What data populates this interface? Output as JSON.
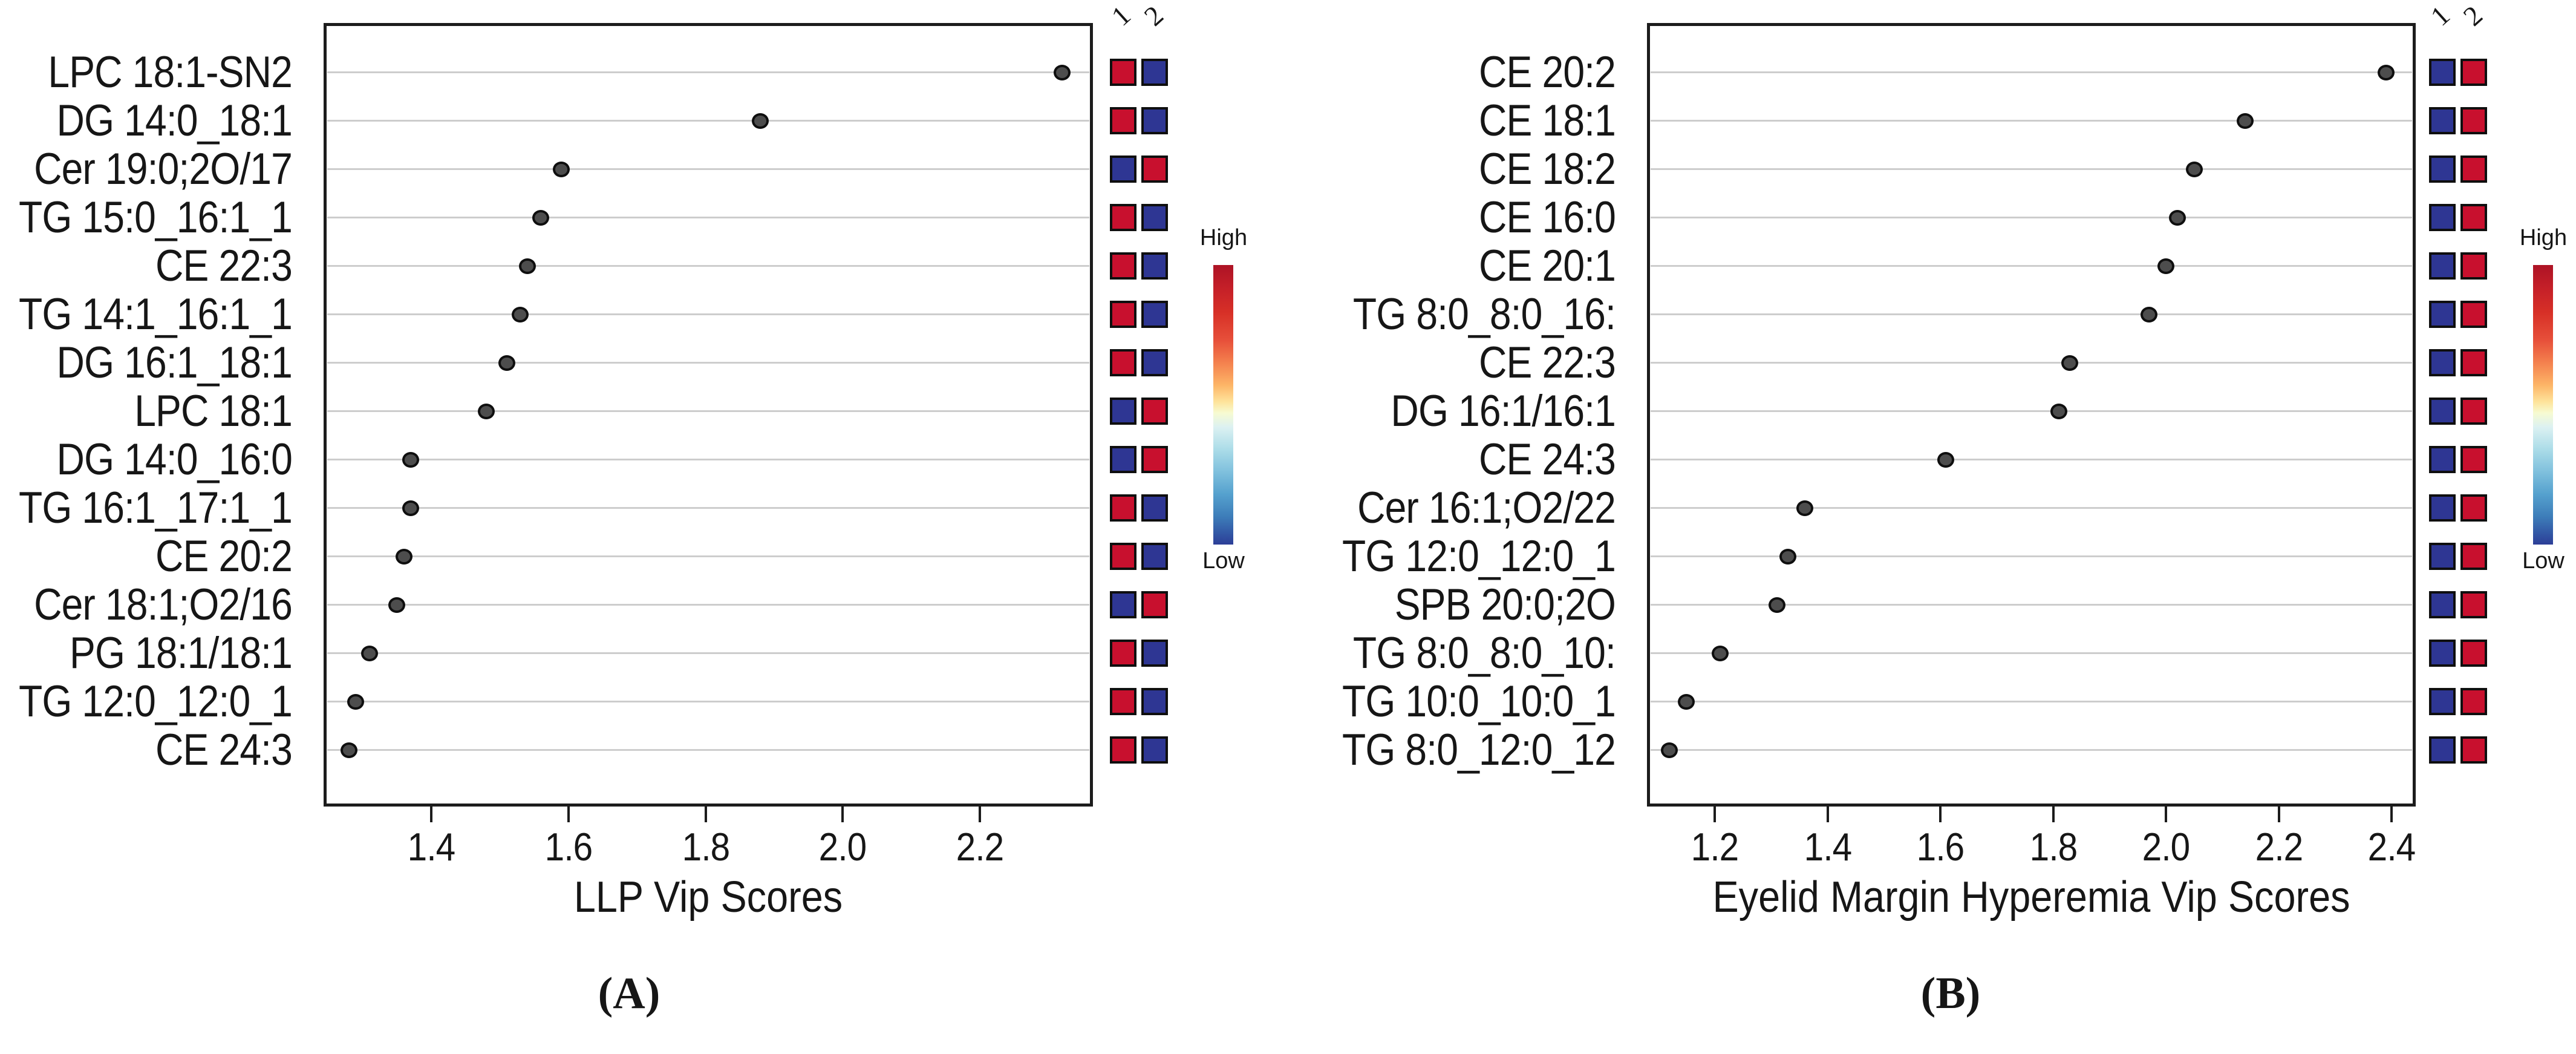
{
  "figure_colors": {
    "heat_high": "#c8102e",
    "heat_low": "#2e3693",
    "dot_fill": "#4d4d4d",
    "gridline": "#cdcdcd"
  },
  "chart_data": [
    {
      "type": "scatter",
      "panel_label": "(A)",
      "title": "",
      "xlabel": "LLP Vip Scores",
      "ylabel": "",
      "xticks": [
        "1.4",
        "1.6",
        "1.8",
        "2.0",
        "2.2"
      ],
      "xlim": [
        1.24,
        2.37
      ],
      "grid": true,
      "legend_position": "right",
      "categories": [
        "LPC 18:1-SN2",
        "DG 14:0_18:1",
        "Cer 19:0;2O/17",
        "TG 15:0_16:1_1",
        "CE 22:3",
        "TG 14:1_16:1_1",
        "DG 16:1_18:1",
        "LPC 18:1",
        "DG 14:0_16:0",
        "TG 16:1_17:1_1",
        "CE 20:2",
        "Cer 18:1;O2/16",
        "PG 18:1/18:1",
        "TG 12:0_12:0_1",
        "CE 24:3"
      ],
      "values": [
        2.32,
        1.88,
        1.59,
        1.56,
        1.54,
        1.53,
        1.51,
        1.48,
        1.37,
        1.37,
        1.36,
        1.35,
        1.31,
        1.29,
        1.28
      ],
      "heatmap_columns": [
        "1",
        "2"
      ],
      "heatmap_levels": [
        [
          "high",
          "low"
        ],
        [
          "high",
          "low"
        ],
        [
          "low",
          "high"
        ],
        [
          "high",
          "low"
        ],
        [
          "high",
          "low"
        ],
        [
          "high",
          "low"
        ],
        [
          "high",
          "low"
        ],
        [
          "low",
          "high"
        ],
        [
          "low",
          "high"
        ],
        [
          "high",
          "low"
        ],
        [
          "high",
          "low"
        ],
        [
          "low",
          "high"
        ],
        [
          "high",
          "low"
        ],
        [
          "high",
          "low"
        ],
        [
          "high",
          "low"
        ]
      ],
      "legend": {
        "top": "High",
        "bottom": "Low"
      }
    },
    {
      "type": "scatter",
      "panel_label": "(B)",
      "title": "",
      "xlabel": "Eyelid Margin Hyperemia Vip Scores",
      "ylabel": "",
      "xticks": [
        "1.2",
        "1.4",
        "1.6",
        "1.8",
        "2.0",
        "2.2",
        "2.4"
      ],
      "xlim": [
        1.08,
        2.44
      ],
      "grid": true,
      "legend_position": "right",
      "categories": [
        "CE 20:2",
        "CE 18:1",
        "CE 18:2",
        "CE 16:0",
        "CE 20:1",
        "TG 8:0_8:0_16:",
        "CE 22:3",
        "DG 16:1/16:1",
        "CE 24:3",
        "Cer 16:1;O2/22",
        "TG 12:0_12:0_1",
        "SPB 20:0;2O",
        "TG 8:0_8:0_10:",
        "TG 10:0_10:0_1",
        "TG 8:0_12:0_12"
      ],
      "values": [
        2.39,
        2.14,
        2.05,
        2.02,
        2.0,
        1.97,
        1.83,
        1.81,
        1.61,
        1.36,
        1.33,
        1.31,
        1.21,
        1.15,
        1.12
      ],
      "heatmap_columns": [
        "1",
        "2"
      ],
      "heatmap_levels": [
        [
          "low",
          "high"
        ],
        [
          "low",
          "high"
        ],
        [
          "low",
          "high"
        ],
        [
          "low",
          "high"
        ],
        [
          "low",
          "high"
        ],
        [
          "low",
          "high"
        ],
        [
          "low",
          "high"
        ],
        [
          "low",
          "high"
        ],
        [
          "low",
          "high"
        ],
        [
          "low",
          "high"
        ],
        [
          "low",
          "high"
        ],
        [
          "low",
          "high"
        ],
        [
          "low",
          "high"
        ],
        [
          "low",
          "high"
        ],
        [
          "low",
          "high"
        ]
      ],
      "legend": {
        "top": "High",
        "bottom": "Low"
      }
    }
  ]
}
